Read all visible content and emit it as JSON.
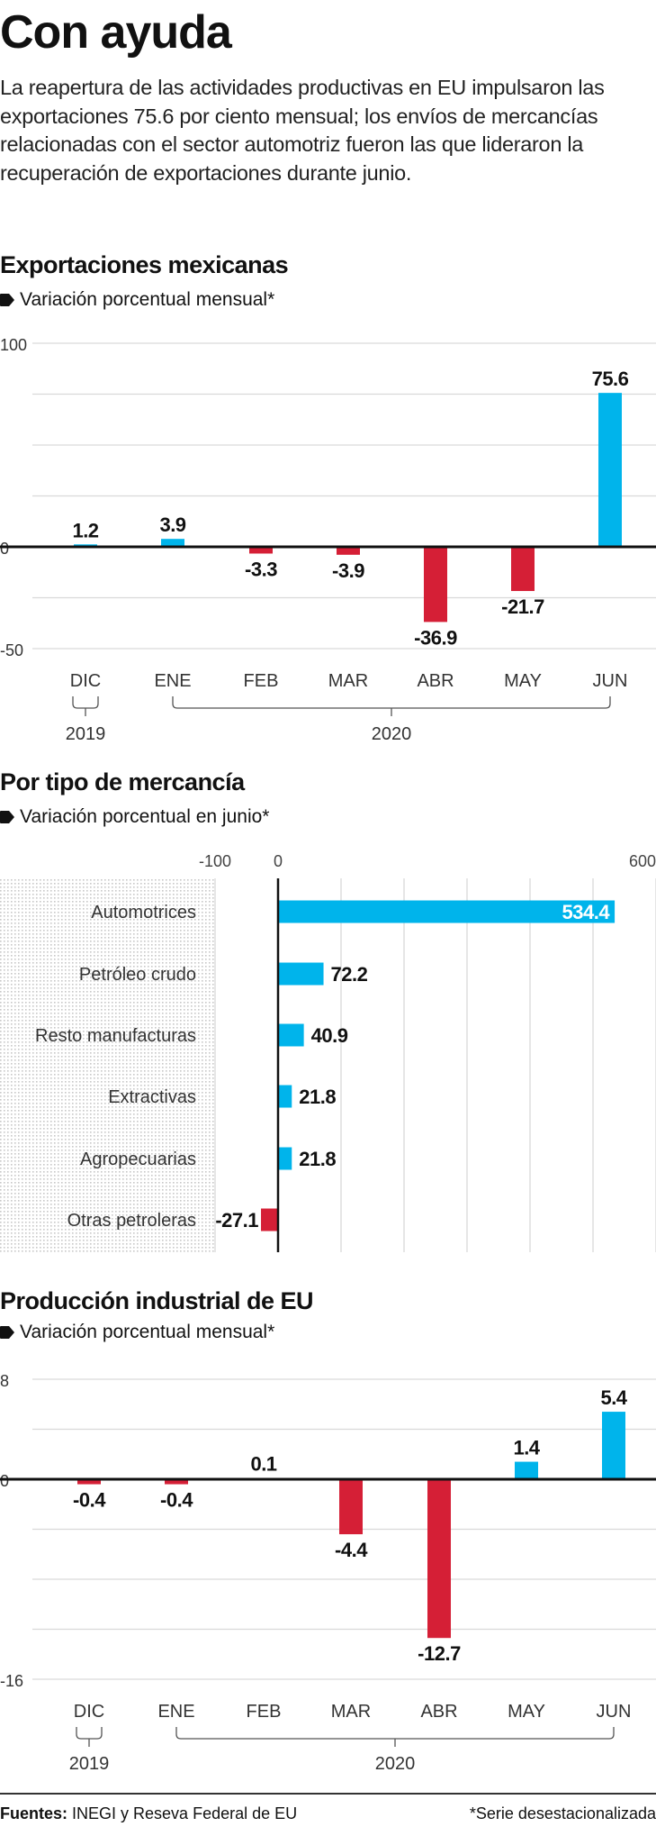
{
  "title": "Con ayuda",
  "lead": "La reapertura de las actividades productivas en EU impulsaron las exportaciones 75.6 por ciento mensual; los envíos de mercancías relacionadas con el sector automotriz fueron las que lideraron la recuperación de exportaciones durante junio.",
  "colors": {
    "positive": "#00b4eb",
    "negative": "#d51f36",
    "grid": "#d9d9d9",
    "axis": "#111111"
  },
  "footer": {
    "sources_label": "Fuentes:",
    "sources": "INEGI y Reseva Federal de EU",
    "note": "*Serie desestacionalizada"
  },
  "chart_data": [
    {
      "type": "bar",
      "title": "Exportaciones mexicanas",
      "subtitle": "Variación porcentual mensual*",
      "categories": [
        "DIC",
        "ENE",
        "FEB",
        "MAR",
        "ABR",
        "MAY",
        "JUN"
      ],
      "values": [
        1.2,
        3.9,
        -3.3,
        -3.9,
        -36.9,
        -21.7,
        75.6
      ],
      "value_labels": [
        "1.2",
        "3.9",
        "-3.3",
        "-3.9",
        "-36.9",
        "-21.7",
        "75.6"
      ],
      "ylim": [
        -50,
        100
      ],
      "yticks": [
        100,
        0,
        -50
      ],
      "ytick_labels": [
        "100",
        "0",
        "-50"
      ],
      "grid_step": 25,
      "grid": true,
      "year_groups": [
        {
          "label": "2019",
          "from": 0,
          "to": 0
        },
        {
          "label": "2020",
          "from": 1,
          "to": 6
        }
      ]
    },
    {
      "type": "bar",
      "orientation": "horizontal",
      "title": "Por tipo de mercancía",
      "subtitle": "Variación porcentual en junio*",
      "categories": [
        "Automotrices",
        "Petróleo crudo",
        "Resto manufacturas",
        "Extractivas",
        "Agropecuarias",
        "Otras petroleras"
      ],
      "values": [
        534.4,
        72.2,
        40.9,
        21.8,
        21.8,
        -27.1
      ],
      "value_labels": [
        "534.4",
        "72.2",
        "40.9",
        "21.8",
        "21.8",
        "-27.1"
      ],
      "xlim": [
        -100,
        600
      ],
      "xticks": [
        -100,
        0,
        600
      ],
      "xtick_labels": [
        "-100",
        "0",
        "600"
      ],
      "grid_step": 100,
      "grid": true
    },
    {
      "type": "bar",
      "title": "Producción industrial de EU",
      "subtitle": "Variación porcentual mensual*",
      "categories": [
        "DIC",
        "ENE",
        "FEB",
        "MAR",
        "ABR",
        "MAY",
        "JUN"
      ],
      "values": [
        -0.4,
        -0.4,
        0.1,
        -4.4,
        -12.7,
        1.4,
        5.4
      ],
      "value_labels": [
        "-0.4",
        "-0.4",
        "0.1",
        "-4.4",
        "-12.7",
        "1.4",
        "5.4"
      ],
      "ylim": [
        -16,
        8
      ],
      "yticks": [
        8,
        0,
        -16
      ],
      "ytick_labels": [
        "8",
        "0",
        "-16"
      ],
      "grid_step": 4,
      "grid": true,
      "year_groups": [
        {
          "label": "2019",
          "from": 0,
          "to": 0
        },
        {
          "label": "2020",
          "from": 1,
          "to": 6
        }
      ]
    }
  ]
}
